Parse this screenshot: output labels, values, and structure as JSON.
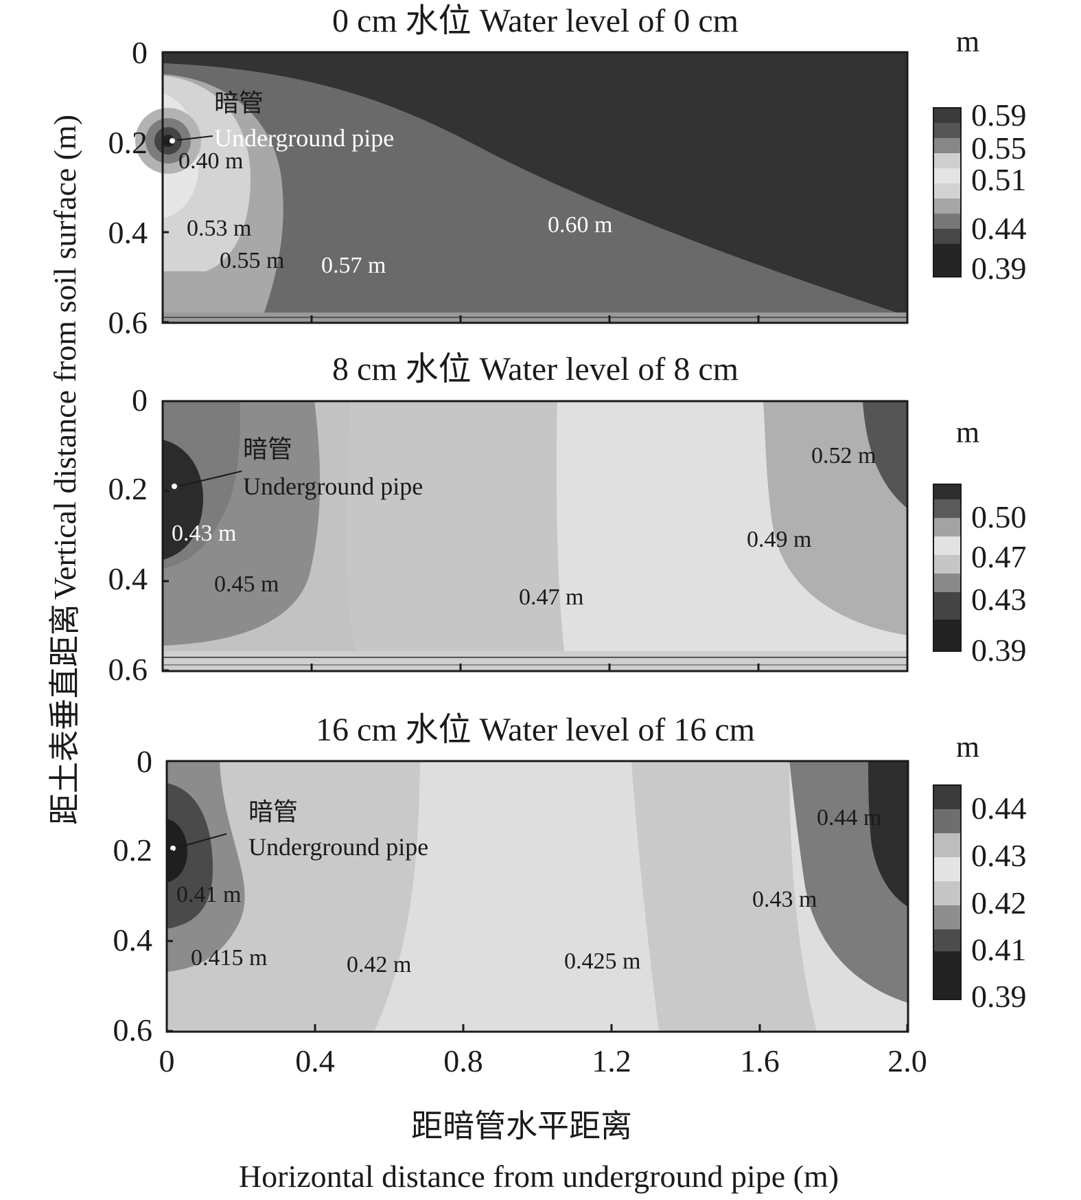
{
  "chart_data": [
    {
      "type": "heatmap",
      "title": "0 cm 水位 Water level of 0 cm",
      "xlim": [
        0,
        2.0
      ],
      "ylim": [
        0,
        0.6
      ],
      "y_inverted": true,
      "x_ticks": [
        "0",
        "0.4",
        "0.8",
        "1.2",
        "1.6",
        "2.0"
      ],
      "y_ticks": [
        "0",
        "0.2",
        "0.4",
        "0.6"
      ],
      "colorbar": {
        "unit": "m",
        "ticks": [
          "0.59",
          "0.55",
          "0.51",
          "0.44",
          "0.39"
        ]
      },
      "pipe": {
        "label_cn": "暗管",
        "label_en": "Underground pipe",
        "x": 0.02,
        "y": 0.2
      },
      "contour_labels": [
        {
          "text": "0.40 m",
          "x": 0.04,
          "y": 0.24
        },
        {
          "text": "0.53 m",
          "x": 0.07,
          "y": 0.39
        },
        {
          "text": "0.55 m",
          "x": 0.16,
          "y": 0.46
        },
        {
          "text": "0.57 m",
          "x": 0.43,
          "y": 0.47
        },
        {
          "text": "0.60 m",
          "x": 1.04,
          "y": 0.38
        }
      ]
    },
    {
      "type": "heatmap",
      "title": "8 cm 水位 Water level of 8 cm",
      "xlim": [
        0,
        2.0
      ],
      "ylim": [
        0,
        0.6
      ],
      "y_inverted": true,
      "x_ticks": [
        "0",
        "0.4",
        "0.8",
        "1.2",
        "1.6",
        "2.0"
      ],
      "y_ticks": [
        "0",
        "0.2",
        "0.4",
        "0.6"
      ],
      "colorbar": {
        "unit": "m",
        "ticks": [
          "0.50",
          "0.47",
          "0.43",
          "0.39"
        ]
      },
      "pipe": {
        "label_cn": "暗管",
        "label_en": "Underground pipe",
        "x": 0.02,
        "y": 0.2
      },
      "contour_labels": [
        {
          "text": "0.52 m",
          "x": 1.75,
          "y": 0.12
        },
        {
          "text": "0.43 m",
          "x": 0.02,
          "y": 0.3
        },
        {
          "text": "0.49 m",
          "x": 1.57,
          "y": 0.31
        },
        {
          "text": "0.45 m",
          "x": 0.14,
          "y": 0.41
        },
        {
          "text": "0.47 m",
          "x": 0.96,
          "y": 0.43
        }
      ]
    },
    {
      "type": "heatmap",
      "title": "16 cm 水位 Water level of 16 cm",
      "xlim": [
        0,
        2.0
      ],
      "ylim": [
        0,
        0.6
      ],
      "y_inverted": true,
      "x_ticks": [
        "0",
        "0.4",
        "0.8",
        "1.2",
        "1.6",
        "2.0"
      ],
      "y_ticks": [
        "0",
        "0.2",
        "0.4",
        "0.6"
      ],
      "colorbar": {
        "unit": "m",
        "ticks": [
          "0.44",
          "0.43",
          "0.42",
          "0.41",
          "0.39"
        ]
      },
      "pipe": {
        "label_cn": "暗管",
        "label_en": "Underground pipe",
        "x": 0.02,
        "y": 0.2
      },
      "contour_labels": [
        {
          "text": "0.44 m",
          "x": 1.76,
          "y": 0.13
        },
        {
          "text": "0.41 m",
          "x": 0.03,
          "y": 0.31
        },
        {
          "text": "0.43 m",
          "x": 1.58,
          "y": 0.31
        },
        {
          "text": "0.415 m",
          "x": 0.07,
          "y": 0.45
        },
        {
          "text": "0.42 m",
          "x": 0.49,
          "y": 0.46
        },
        {
          "text": "0.425 m",
          "x": 1.08,
          "y": 0.45
        }
      ]
    }
  ],
  "axes": {
    "xlabel_cn": "距暗管水平距离",
    "xlabel_en": "Horizontal distance from underground pipe (m)",
    "ylabel_cn": "距土表垂直距离",
    "ylabel_en": "Vertical distance from soil surface (m)"
  },
  "colors": {
    "background": "#ffffff",
    "axis": "#1a1a1a",
    "fill_darkest": "#222222",
    "fill_dark": "#3d3d3d",
    "fill_mid": "#7a7a7a",
    "fill_light": "#bdbdbd",
    "fill_lightest": "#e2e2e2"
  }
}
